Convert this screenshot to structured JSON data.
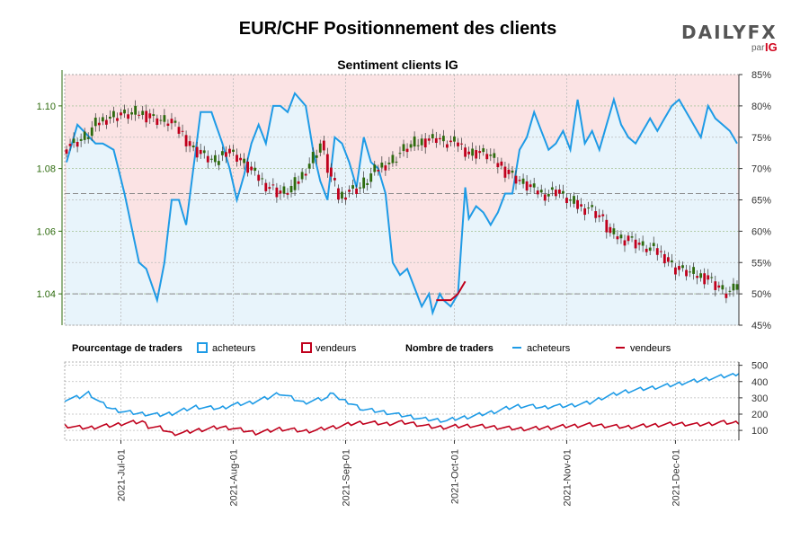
{
  "header": {
    "title": "EUR/CHF Positionnement des clients"
  },
  "logo": {
    "word": "DAILYFX",
    "by": "par",
    "brand": "IG"
  },
  "colors": {
    "buyers": "#1e9be6",
    "sellers": "#c0001c",
    "buy_fill": "#e8f4fb",
    "sell_fill": "#fbe3e4",
    "up_candle": "#2e6b0e",
    "down_candle": "#c0001c",
    "left_axis": "#2e6b0e"
  },
  "legend": {
    "pct_title": "Pourcentage de traders",
    "pct_buyers": "acheteurs",
    "pct_sellers": "vendeurs",
    "count_title": "Nombre de traders",
    "count_buyers": "acheteurs",
    "count_sellers": "vendeurs"
  },
  "chart_data": [
    {
      "type": "line",
      "title": "Sentiment clients IG",
      "subtype": "candlestick price with client long percentage",
      "x_dates": [
        "2021-Jul-01",
        "2021-Aug-01",
        "2021-Sep-01",
        "2021-Oct-01",
        "2021-Nov-01",
        "2021-Dec-01"
      ],
      "price_axis": {
        "ticks": [
          "1.04",
          "1.06",
          "1.08",
          "1.10"
        ],
        "ylim": [
          1.03,
          1.11
        ]
      },
      "pct_axis": {
        "ticks": [
          "45%",
          "50%",
          "55%",
          "60%",
          "65%",
          "70%",
          "75%",
          "80%",
          "85%"
        ],
        "ylim": [
          45,
          85
        ]
      },
      "reference_lines": {
        "price_level": 1.04,
        "pct_level": 66
      },
      "series": [
        {
          "name": "acheteurs",
          "unit": "%",
          "anchors": [
            [
              0,
              71
            ],
            [
              3,
              77
            ],
            [
              8,
              74
            ],
            [
              10,
              74
            ],
            [
              13,
              73
            ],
            [
              16,
              66
            ],
            [
              20,
              55
            ],
            [
              22,
              54
            ],
            [
              25,
              49
            ],
            [
              27,
              55
            ],
            [
              29,
              65
            ],
            [
              31,
              65
            ],
            [
              33,
              61
            ],
            [
              35,
              70
            ],
            [
              37,
              79
            ],
            [
              40,
              79
            ],
            [
              43,
              74
            ],
            [
              45,
              70
            ],
            [
              47,
              65
            ],
            [
              49,
              69
            ],
            [
              51,
              74
            ],
            [
              53,
              77
            ],
            [
              55,
              74
            ],
            [
              57,
              80
            ],
            [
              59,
              80
            ],
            [
              61,
              79
            ],
            [
              63,
              82
            ],
            [
              66,
              80
            ],
            [
              68,
              73
            ],
            [
              70,
              68
            ],
            [
              72,
              65
            ],
            [
              74,
              75
            ],
            [
              76,
              74
            ],
            [
              78,
              71
            ],
            [
              80,
              67
            ],
            [
              82,
              75
            ],
            [
              84,
              71
            ],
            [
              86,
              70
            ],
            [
              88,
              66
            ],
            [
              90,
              55
            ],
            [
              92,
              53
            ],
            [
              94,
              54
            ],
            [
              96,
              51
            ],
            [
              98,
              48
            ],
            [
              100,
              50
            ],
            [
              101,
              47
            ],
            [
              103,
              50
            ],
            [
              104,
              49
            ],
            [
              106,
              48
            ],
            [
              108,
              50
            ],
            [
              110,
              67
            ],
            [
              111,
              62
            ],
            [
              113,
              64
            ],
            [
              115,
              63
            ],
            [
              117,
              61
            ],
            [
              119,
              63
            ],
            [
              121,
              66
            ],
            [
              123,
              66
            ],
            [
              125,
              73
            ],
            [
              127,
              75
            ],
            [
              129,
              79
            ],
            [
              131,
              76
            ],
            [
              133,
              73
            ],
            [
              135,
              74
            ],
            [
              137,
              76
            ],
            [
              139,
              73
            ],
            [
              141,
              81
            ],
            [
              143,
              74
            ],
            [
              145,
              76
            ],
            [
              147,
              73
            ],
            [
              149,
              77
            ],
            [
              151,
              81
            ],
            [
              153,
              77
            ],
            [
              155,
              75
            ],
            [
              157,
              74
            ],
            [
              159,
              76
            ],
            [
              161,
              78
            ],
            [
              163,
              76
            ],
            [
              165,
              78
            ],
            [
              167,
              80
            ],
            [
              169,
              81
            ],
            [
              171,
              79
            ],
            [
              173,
              77
            ],
            [
              175,
              75
            ],
            [
              177,
              80
            ],
            [
              179,
              78
            ],
            [
              181,
              77
            ],
            [
              183,
              76
            ],
            [
              185,
              74
            ]
          ]
        },
        {
          "name": "vendeurs",
          "unit": "%",
          "anchors": [
            [
              102,
              49
            ],
            [
              104,
              49
            ],
            [
              106,
              49
            ],
            [
              108,
              50
            ],
            [
              110,
              52
            ]
          ]
        }
      ],
      "candles": {
        "n_days": 186,
        "close_anchors": [
          [
            0,
            1.087
          ],
          [
            5,
            1.09
          ],
          [
            8,
            1.094
          ],
          [
            12,
            1.097
          ],
          [
            16,
            1.097
          ],
          [
            20,
            1.098
          ],
          [
            24,
            1.096
          ],
          [
            28,
            1.095
          ],
          [
            32,
            1.091
          ],
          [
            35,
            1.086
          ],
          [
            38,
            1.084
          ],
          [
            41,
            1.082
          ],
          [
            44,
            1.086
          ],
          [
            47,
            1.084
          ],
          [
            50,
            1.08
          ],
          [
            53,
            1.077
          ],
          [
            56,
            1.074
          ],
          [
            59,
            1.072
          ],
          [
            61,
            1.073
          ],
          [
            64,
            1.076
          ],
          [
            67,
            1.082
          ],
          [
            70,
            1.088
          ],
          [
            72,
            1.08
          ],
          [
            75,
            1.071
          ],
          [
            78,
            1.073
          ],
          [
            81,
            1.074
          ],
          [
            84,
            1.078
          ],
          [
            87,
            1.081
          ],
          [
            90,
            1.083
          ],
          [
            93,
            1.086
          ],
          [
            96,
            1.088
          ],
          [
            99,
            1.089
          ],
          [
            102,
            1.09
          ],
          [
            105,
            1.088
          ],
          [
            108,
            1.088
          ],
          [
            111,
            1.085
          ],
          [
            114,
            1.085
          ],
          [
            117,
            1.084
          ],
          [
            120,
            1.08
          ],
          [
            123,
            1.078
          ],
          [
            126,
            1.075
          ],
          [
            129,
            1.073
          ],
          [
            132,
            1.072
          ],
          [
            135,
            1.073
          ],
          [
            137,
            1.071
          ],
          [
            140,
            1.069
          ],
          [
            142,
            1.067
          ],
          [
            144,
            1.068
          ],
          [
            146,
            1.066
          ],
          [
            148,
            1.063
          ],
          [
            150,
            1.059
          ],
          [
            153,
            1.058
          ],
          [
            156,
            1.057
          ],
          [
            159,
            1.055
          ],
          [
            162,
            1.054
          ],
          [
            165,
            1.052
          ],
          [
            168,
            1.048
          ],
          [
            171,
            1.047
          ],
          [
            174,
            1.046
          ],
          [
            177,
            1.045
          ],
          [
            180,
            1.042
          ],
          [
            182,
            1.04
          ],
          [
            184,
            1.041
          ],
          [
            185,
            1.044
          ]
        ]
      }
    },
    {
      "type": "line",
      "title": "",
      "ylabel": "",
      "y_ticks": [
        "100",
        "200",
        "300",
        "400",
        "500"
      ],
      "ylim": [
        40,
        520
      ],
      "series": [
        {
          "name": "acheteurs",
          "anchors": [
            [
              0,
              290
            ],
            [
              5,
              305
            ],
            [
              8,
              330
            ],
            [
              12,
              270
            ],
            [
              16,
              230
            ],
            [
              20,
              215
            ],
            [
              24,
              205
            ],
            [
              28,
              200
            ],
            [
              32,
              195
            ],
            [
              36,
              205
            ],
            [
              40,
              225
            ],
            [
              44,
              245
            ],
            [
              48,
              240
            ],
            [
              52,
              235
            ],
            [
              56,
              255
            ],
            [
              60,
              265
            ],
            [
              62,
              270
            ],
            [
              64,
              280
            ],
            [
              68,
              300
            ],
            [
              72,
              330
            ],
            [
              76,
              300
            ],
            [
              80,
              270
            ],
            [
              84,
              285
            ],
            [
              88,
              300
            ],
            [
              90,
              340
            ],
            [
              92,
              290
            ],
            [
              96,
              265
            ],
            [
              100,
              230
            ],
            [
              104,
              220
            ],
            [
              108,
              210
            ],
            [
              112,
              195
            ],
            [
              116,
              185
            ],
            [
              120,
              170
            ],
            [
              124,
              165
            ],
            [
              128,
              160
            ],
            [
              132,
              175
            ],
            [
              136,
              185
            ],
            [
              140,
              200
            ],
            [
              144,
              215
            ],
            [
              148,
              235
            ],
            [
              152,
              250
            ],
            [
              156,
              250
            ],
            [
              160,
              240
            ],
            [
              164,
              250
            ],
            [
              168,
              250
            ],
            [
              172,
              260
            ],
            [
              176,
              270
            ],
            [
              180,
              300
            ],
            [
              184,
              320
            ],
            [
              188,
              340
            ],
            [
              192,
              350
            ],
            [
              196,
              360
            ],
            [
              200,
              370
            ],
            [
              204,
              380
            ],
            [
              208,
              395
            ],
            [
              212,
              405
            ],
            [
              216,
              420
            ],
            [
              220,
              430
            ],
            [
              224,
              440
            ],
            [
              226,
              455
            ]
          ]
        },
        {
          "name": "vendeurs",
          "anchors": [
            [
              0,
              130
            ],
            [
              4,
              120
            ],
            [
              8,
              115
            ],
            [
              12,
              125
            ],
            [
              16,
              130
            ],
            [
              20,
              145
            ],
            [
              24,
              150
            ],
            [
              26,
              155
            ],
            [
              28,
              125
            ],
            [
              32,
              115
            ],
            [
              36,
              80
            ],
            [
              40,
              85
            ],
            [
              44,
              100
            ],
            [
              48,
              110
            ],
            [
              52,
              120
            ],
            [
              56,
              115
            ],
            [
              60,
              100
            ],
            [
              64,
              85
            ],
            [
              68,
              95
            ],
            [
              72,
              110
            ],
            [
              76,
              105
            ],
            [
              80,
              95
            ],
            [
              84,
              100
            ],
            [
              88,
              115
            ],
            [
              92,
              125
            ],
            [
              96,
              140
            ],
            [
              100,
              150
            ],
            [
              104,
              145
            ],
            [
              108,
              140
            ],
            [
              112,
              150
            ],
            [
              116,
              145
            ],
            [
              120,
              130
            ],
            [
              124,
              120
            ],
            [
              128,
              120
            ],
            [
              132,
              125
            ],
            [
              136,
              130
            ],
            [
              140,
              125
            ],
            [
              144,
              120
            ],
            [
              148,
              115
            ],
            [
              152,
              110
            ],
            [
              156,
              110
            ],
            [
              160,
              115
            ],
            [
              164,
              120
            ],
            [
              168,
              125
            ],
            [
              172,
              130
            ],
            [
              176,
              135
            ],
            [
              180,
              130
            ],
            [
              184,
              125
            ],
            [
              188,
              120
            ],
            [
              192,
              125
            ],
            [
              196,
              130
            ],
            [
              200,
              135
            ],
            [
              204,
              140
            ],
            [
              208,
              140
            ],
            [
              212,
              135
            ],
            [
              216,
              140
            ],
            [
              220,
              150
            ],
            [
              224,
              145
            ],
            [
              226,
              150
            ]
          ]
        }
      ]
    }
  ]
}
